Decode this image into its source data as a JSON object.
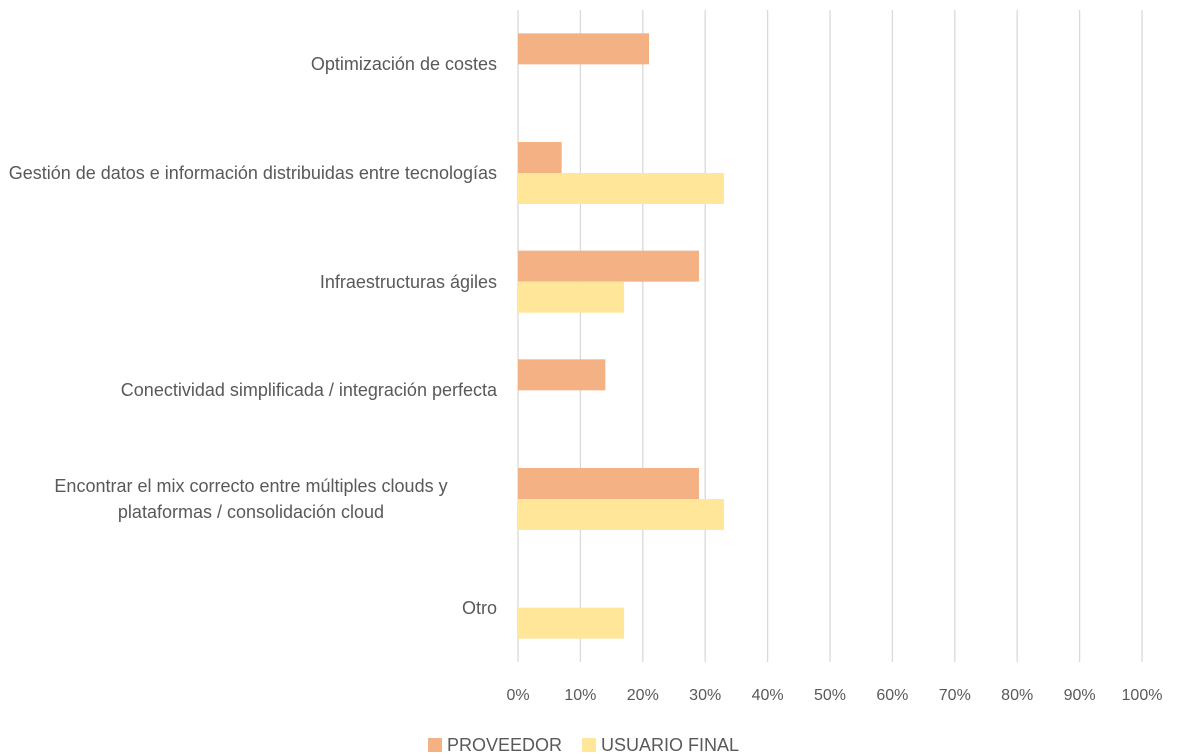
{
  "chart_data": {
    "type": "hbar",
    "categories": [
      "Optimización de costes",
      "Gestión de datos e información distribuidas entre tecnologías",
      "Infraestructuras ágiles",
      "Conectividad simplificada / integración perfecta",
      "Encontrar el mix correcto entre múltiples clouds y plataformas / consolidación cloud",
      "Otro"
    ],
    "series": [
      {
        "name": "PROVEEDOR",
        "color": "#f4b183",
        "values": [
          21,
          7,
          29,
          14,
          29,
          0
        ]
      },
      {
        "name": "USUARIO FINAL",
        "color": "#ffe699",
        "values": [
          0,
          33,
          17,
          0,
          33,
          17
        ]
      }
    ],
    "xlim": [
      0,
      100
    ],
    "xticks": [
      {
        "value": 0,
        "label": "0%"
      },
      {
        "value": 10,
        "label": "10%"
      },
      {
        "value": 20,
        "label": "20%"
      },
      {
        "value": 30,
        "label": "30%"
      },
      {
        "value": 40,
        "label": "40%"
      },
      {
        "value": 50,
        "label": "50%"
      },
      {
        "value": 60,
        "label": "60%"
      },
      {
        "value": 70,
        "label": "70%"
      },
      {
        "value": 80,
        "label": "80%"
      },
      {
        "value": 90,
        "label": "90%"
      },
      {
        "value": 100,
        "label": "100%"
      }
    ],
    "grid": true,
    "legend": "bottom"
  }
}
